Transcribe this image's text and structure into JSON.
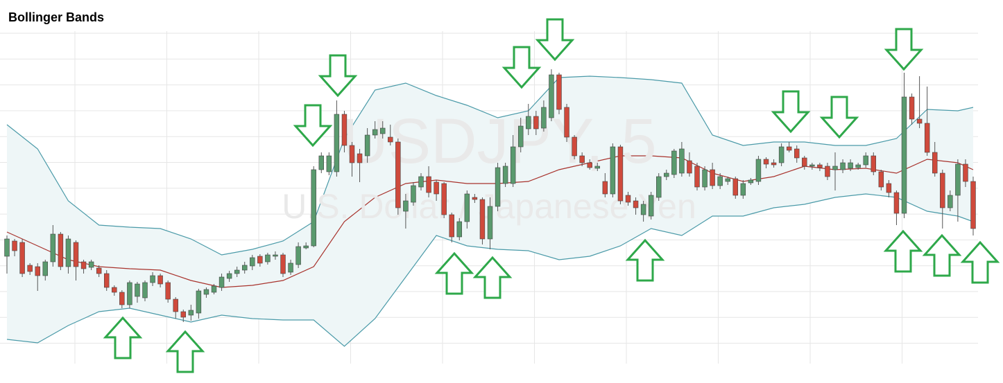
{
  "chart_data": {
    "type": "candlestick",
    "title": "Bollinger Bands",
    "watermark": "USDJPY, 5",
    "watermark_subtitle": "U.S. Dollar / Japanese Yen",
    "up_color": "#5a9a6e",
    "down_color": "#cf4a3c",
    "ylim": [
      0,
      480
    ],
    "open": [
      155,
      177,
      175,
      142,
      140,
      127,
      147,
      187,
      140,
      175,
      147,
      139,
      138,
      130,
      110,
      103,
      85,
      97,
      95,
      117,
      127,
      117,
      93,
      75,
      70,
      73,
      100,
      103,
      110,
      123,
      130,
      135,
      141,
      155,
      147,
      155,
      157,
      132,
      143,
      167,
      170,
      280,
      277,
      277,
      360,
      315,
      303,
      300,
      330,
      332,
      327,
      320,
      220,
      233,
      255,
      270,
      262,
      260,
      215,
      183,
      205,
      240,
      237,
      180,
      227,
      260,
      260,
      313,
      339,
      357,
      340,
      355,
      417,
      370,
      327,
      300,
      290,
      282,
      263,
      245,
      313,
      243,
      235,
      215,
      213,
      240,
      270,
      273,
      275,
      293,
      285,
      255,
      280,
      257,
      263,
      267,
      243,
      261,
      263,
      295,
      290,
      290,
      313,
      310,
      297,
      285,
      287,
      285,
      280,
      280,
      282,
      283,
      287,
      300,
      277,
      260,
      247,
      217,
      385,
      353,
      347,
      305,
      275,
      225,
      243,
      288,
      263
    ],
    "high": [
      185,
      180,
      180,
      145,
      145,
      150,
      200,
      190,
      185,
      178,
      150,
      150,
      142,
      135,
      113,
      106,
      120,
      118,
      120,
      132,
      130,
      120,
      96,
      78,
      85,
      108,
      110,
      115,
      130,
      134,
      140,
      147,
      157,
      158,
      160,
      162,
      160,
      150,
      175,
      175,
      285,
      305,
      305,
      380,
      365,
      320,
      310,
      340,
      350,
      350,
      345,
      325,
      245,
      262,
      275,
      285,
      265,
      262,
      218,
      210,
      250,
      245,
      240,
      240,
      290,
      290,
      330,
      355,
      375,
      365,
      380,
      425,
      420,
      375,
      330,
      305,
      295,
      290,
      275,
      318,
      316,
      248,
      240,
      235,
      248,
      275,
      280,
      310,
      320,
      305,
      290,
      285,
      290,
      275,
      270,
      270,
      265,
      268,
      300,
      298,
      295,
      318,
      320,
      315,
      300,
      290,
      290,
      290,
      305,
      295,
      295,
      290,
      305,
      305,
      280,
      265,
      250,
      420,
      390,
      415,
      400,
      320,
      280,
      250,
      295,
      295,
      270
    ],
    "low": [
      130,
      155,
      125,
      128,
      105,
      120,
      140,
      135,
      130,
      120,
      130,
      135,
      125,
      105,
      98,
      80,
      80,
      88,
      90,
      112,
      110,
      88,
      65,
      60,
      62,
      65,
      95,
      100,
      105,
      118,
      125,
      130,
      135,
      140,
      143,
      150,
      125,
      128,
      138,
      165,
      168,
      275,
      272,
      270,
      305,
      270,
      262,
      290,
      325,
      325,
      315,
      215,
      195,
      228,
      250,
      240,
      235,
      210,
      175,
      178,
      195,
      232,
      172,
      165,
      220,
      255,
      255,
      305,
      330,
      330,
      335,
      350,
      360,
      320,
      295,
      285,
      280,
      278,
      240,
      240,
      230,
      228,
      215,
      205,
      208,
      235,
      265,
      268,
      270,
      270,
      250,
      250,
      252,
      252,
      258,
      238,
      238,
      258,
      258,
      282,
      283,
      285,
      305,
      290,
      280,
      280,
      278,
      265,
      250,
      275,
      278,
      280,
      283,
      272,
      250,
      240,
      200,
      210,
      345,
      340,
      300,
      270,
      195,
      220,
      205,
      255,
      185
    ],
    "close": [
      180,
      163,
      130,
      133,
      127,
      147,
      187,
      140,
      180,
      140,
      137,
      147,
      130,
      110,
      103,
      85,
      117,
      115,
      117,
      127,
      115,
      93,
      75,
      67,
      77,
      105,
      107,
      112,
      125,
      130,
      135,
      142,
      153,
      145,
      157,
      157,
      130,
      145,
      169,
      170,
      280,
      300,
      300,
      360,
      315,
      290,
      290,
      330,
      338,
      340,
      320,
      225,
      235,
      257,
      270,
      247,
      245,
      215,
      183,
      205,
      245,
      237,
      180,
      227,
      283,
      285,
      313,
      343,
      357,
      339,
      370,
      417,
      367,
      327,
      300,
      290,
      283,
      285,
      245,
      313,
      235,
      233,
      225,
      230,
      243,
      270,
      275,
      307,
      310,
      275,
      255,
      280,
      257,
      270,
      267,
      243,
      260,
      265,
      295,
      288,
      287,
      313,
      308,
      297,
      285,
      287,
      283,
      270,
      285,
      290,
      290,
      287,
      300,
      277,
      255,
      247,
      217,
      385,
      353,
      347,
      305,
      275,
      225,
      243,
      288,
      263,
      195
    ],
    "bands": {
      "x": [
        0,
        4,
        8,
        12,
        16,
        20,
        24,
        28,
        32,
        36,
        40,
        44,
        48,
        52,
        56,
        60,
        64,
        68,
        72,
        76,
        80,
        84,
        88,
        92,
        96,
        100,
        104,
        108,
        112,
        116,
        120,
        124,
        126
      ],
      "upper": [
        345,
        310,
        235,
        200,
        197,
        195,
        180,
        157,
        165,
        177,
        205,
        325,
        395,
        405,
        387,
        373,
        355,
        365,
        413,
        415,
        413,
        410,
        405,
        330,
        315,
        320,
        320,
        315,
        315,
        325,
        367,
        365,
        370
      ],
      "middle": [
        190,
        170,
        150,
        140,
        137,
        135,
        120,
        110,
        113,
        120,
        140,
        205,
        240,
        260,
        265,
        260,
        260,
        263,
        280,
        290,
        300,
        300,
        297,
        275,
        263,
        270,
        285,
        280,
        282,
        275,
        295,
        290,
        280
      ],
      "lower": [
        35,
        30,
        55,
        75,
        80,
        70,
        60,
        70,
        65,
        63,
        63,
        25,
        65,
        125,
        185,
        170,
        165,
        163,
        150,
        155,
        170,
        195,
        185,
        213,
        213,
        225,
        230,
        240,
        245,
        240,
        220,
        213,
        205
      ],
      "band_color": "#4a9aa8",
      "fill_color": "#eef6f7",
      "middle_color": "#a8322c"
    }
  }
}
